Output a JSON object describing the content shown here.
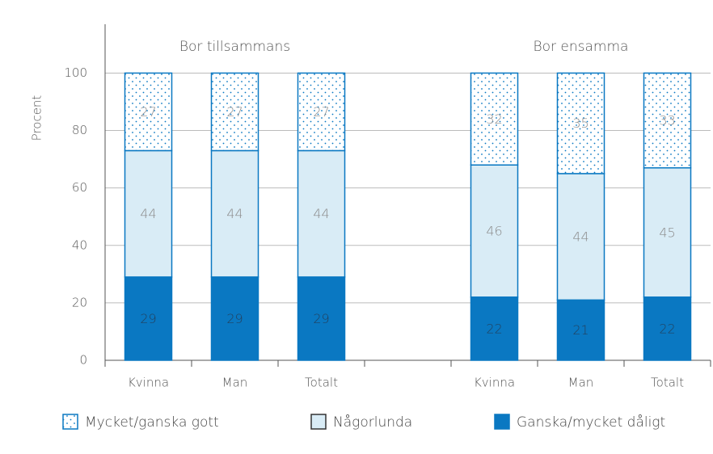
{
  "chart_data": {
    "type": "stacked_bar",
    "y_label": "Procent",
    "annotations": [
      {
        "text": "Bor tillsammans"
      },
      {
        "text": "Bor ensamma"
      }
    ],
    "categories": [
      "Kvinna",
      "Man",
      "Totalt",
      null,
      "Kvinna",
      "Man",
      "Totalt"
    ],
    "series": [
      {
        "name": "Mycket/ganska gott",
        "color": "#ffffff",
        "pattern": "dots",
        "values": [
          27,
          27,
          27,
          null,
          32,
          35,
          33
        ]
      },
      {
        "name": "Någorlunda",
        "color": "#d9ecf6",
        "values": [
          44,
          44,
          44,
          null,
          46,
          44,
          45
        ]
      },
      {
        "name": "Ganska/mycket dåligt",
        "color": "#0a78c2",
        "values": [
          29,
          29,
          29,
          null,
          22,
          21,
          22
        ]
      }
    ],
    "ylim": [
      0,
      117
    ],
    "yticks": [
      0,
      20,
      40,
      60,
      80,
      100
    ],
    "grid": true
  }
}
